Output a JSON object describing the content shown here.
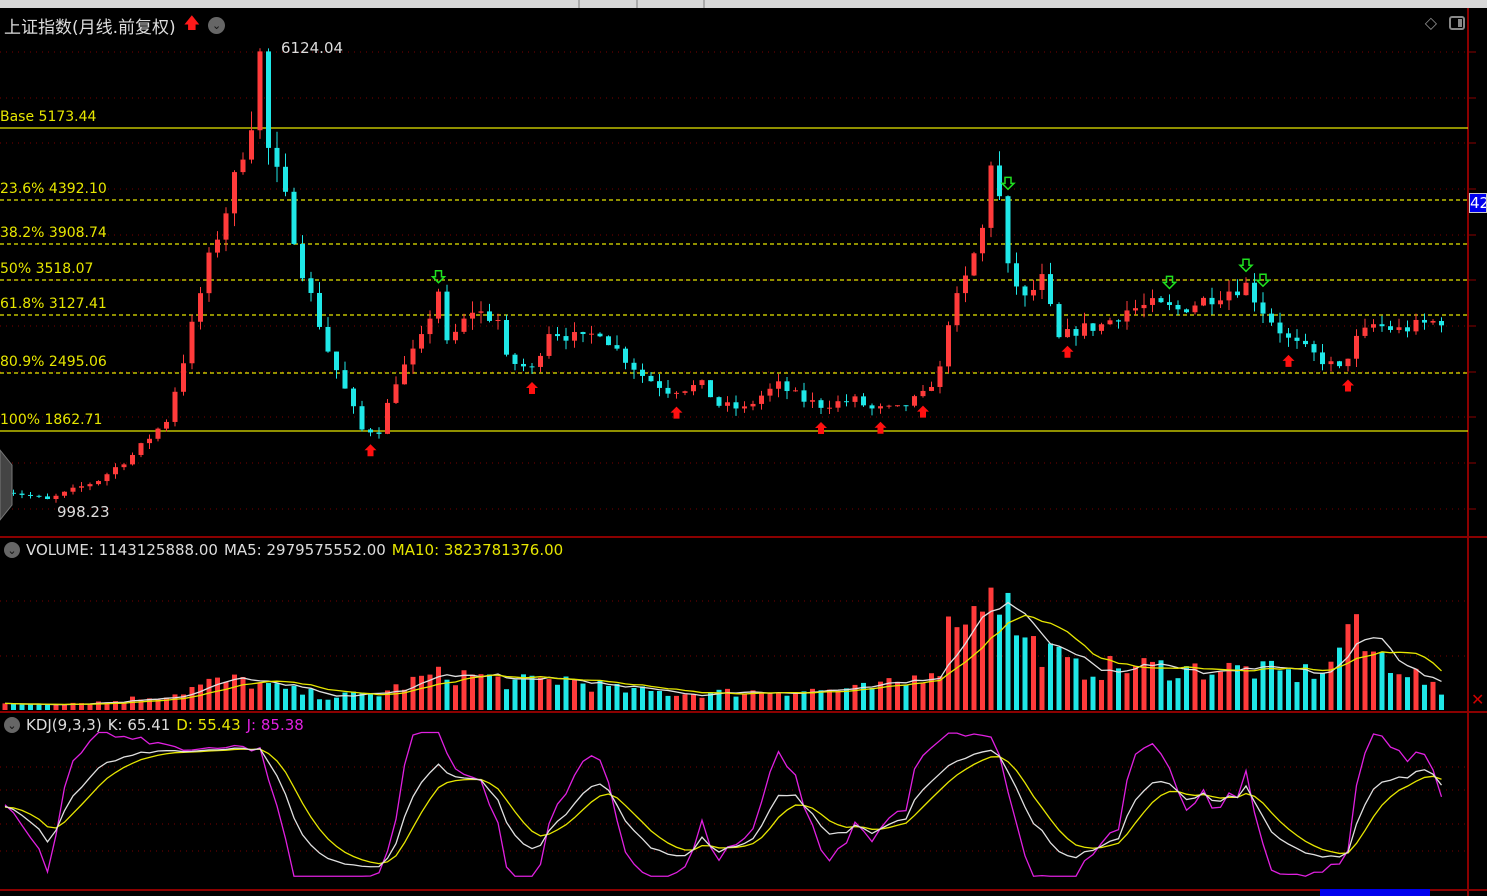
{
  "title": "上证指数(月线.前复权)",
  "icons": {
    "trend": "red-up-arrow-icon",
    "menu": "chevron-down-icon",
    "draw": "diamond-icon",
    "layout": "panel-toggle-icon"
  },
  "colors": {
    "up": "#ff3b3b",
    "down": "#1fe8e8",
    "fib": "#e6e600",
    "ma5": "#e0e0e0",
    "ma10": "#e6e600",
    "j": "#e020e0",
    "grid": "#7a0000",
    "frame": "#8b0000"
  },
  "main": {
    "high_label": "6124.04",
    "low_label": "998.23",
    "axis_value": "42",
    "fib_levels": [
      {
        "label": "Base 5173.44",
        "price": 5173.44,
        "style": "solid"
      },
      {
        "label": "23.6% 4392.10",
        "price": 4392.1,
        "style": "dashed"
      },
      {
        "label": "38.2% 3908.74",
        "price": 3908.74,
        "style": "dashed"
      },
      {
        "label": "50% 3518.07",
        "price": 3518.07,
        "style": "dashed"
      },
      {
        "label": "61.8% 3127.41",
        "price": 3127.41,
        "style": "dashed"
      },
      {
        "label": "80.9% 2495.06",
        "price": 2495.06,
        "style": "dashed"
      },
      {
        "label": "100% 1862.71",
        "price": 1862.71,
        "style": "solid"
      }
    ]
  },
  "volume": {
    "label": "VOLUME: 1143125888.00",
    "ma5": "MA5: 2979575552.00",
    "ma10": "MA10: 3823781376.00"
  },
  "kdj": {
    "label": "KDJ(9,3,3)",
    "k": "K: 65.41",
    "d": "D: 55.43",
    "j": "J: 85.38"
  },
  "chart_data": {
    "type": "candlestick",
    "close_anchors": [
      [
        0,
        1218
      ],
      [
        5,
        1108
      ],
      [
        11,
        1327
      ],
      [
        15,
        1600
      ],
      [
        19,
        1983
      ],
      [
        21,
        2638
      ],
      [
        24,
        3730
      ],
      [
        26,
        4277
      ],
      [
        29,
        5260
      ],
      [
        30,
        5971
      ],
      [
        31,
        4933
      ],
      [
        33,
        4387
      ],
      [
        35,
        3622
      ],
      [
        38,
        2748
      ],
      [
        42,
        1873
      ],
      [
        44,
        1873
      ],
      [
        46,
        2420
      ],
      [
        49,
        2857
      ],
      [
        51,
        3403
      ],
      [
        52,
        2800
      ],
      [
        55,
        3185
      ],
      [
        58,
        3076
      ],
      [
        59,
        2638
      ],
      [
        62,
        2530
      ],
      [
        64,
        2966
      ],
      [
        68,
        2857
      ],
      [
        70,
        2966
      ],
      [
        72,
        2748
      ],
      [
        75,
        2474
      ],
      [
        78,
        2311
      ],
      [
        82,
        2360
      ],
      [
        84,
        2147
      ],
      [
        87,
        2100
      ],
      [
        89,
        2250
      ],
      [
        91,
        2360
      ],
      [
        94,
        2200
      ],
      [
        96,
        2147
      ],
      [
        100,
        2200
      ],
      [
        102,
        2100
      ],
      [
        105,
        2100
      ],
      [
        108,
        2250
      ],
      [
        110,
        2529
      ],
      [
        111,
        3076
      ],
      [
        113,
        3513
      ],
      [
        115,
        4059
      ],
      [
        116,
        4824
      ],
      [
        117,
        4400
      ],
      [
        118,
        3622
      ],
      [
        120,
        3294
      ],
      [
        122,
        3513
      ],
      [
        124,
        2857
      ],
      [
        126,
        2966
      ],
      [
        129,
        3020
      ],
      [
        132,
        3185
      ],
      [
        135,
        3240
      ],
      [
        138,
        3185
      ],
      [
        141,
        3294
      ],
      [
        144,
        3403
      ],
      [
        146,
        3458
      ],
      [
        148,
        3185
      ],
      [
        151,
        2857
      ],
      [
        155,
        2638
      ],
      [
        157,
        2530
      ],
      [
        159,
        2857
      ],
      [
        161,
        3020
      ],
      [
        164,
        2966
      ],
      [
        169,
        3076
      ]
    ],
    "volume_anchors_billion": [
      [
        0,
        0.4
      ],
      [
        12,
        0.6
      ],
      [
        20,
        1.2
      ],
      [
        24,
        2.0
      ],
      [
        28,
        2.2
      ],
      [
        32,
        1.6
      ],
      [
        38,
        1.0
      ],
      [
        44,
        1.2
      ],
      [
        50,
        2.5
      ],
      [
        55,
        2.6
      ],
      [
        60,
        2.0
      ],
      [
        66,
        2.3
      ],
      [
        72,
        1.5
      ],
      [
        80,
        1.2
      ],
      [
        90,
        1.4
      ],
      [
        100,
        1.5
      ],
      [
        106,
        2.0
      ],
      [
        110,
        3.5
      ],
      [
        112,
        8.0
      ],
      [
        114,
        7.0
      ],
      [
        116,
        10.5
      ],
      [
        118,
        7.5
      ],
      [
        120,
        5.0
      ],
      [
        122,
        4.5
      ],
      [
        126,
        3.0
      ],
      [
        134,
        3.2
      ],
      [
        140,
        3.0
      ],
      [
        146,
        3.0
      ],
      [
        152,
        2.6
      ],
      [
        156,
        3.2
      ],
      [
        158,
        6.5
      ],
      [
        160,
        4.5
      ],
      [
        165,
        3.0
      ],
      [
        169,
        1.14
      ]
    ],
    "ylim": [
      998.23,
      6124.04
    ],
    "buy_signal_indices": [
      43,
      62,
      79,
      96,
      103,
      108,
      125,
      151,
      158
    ],
    "sell_signal_indices": [
      51,
      118,
      137,
      146,
      148
    ]
  }
}
